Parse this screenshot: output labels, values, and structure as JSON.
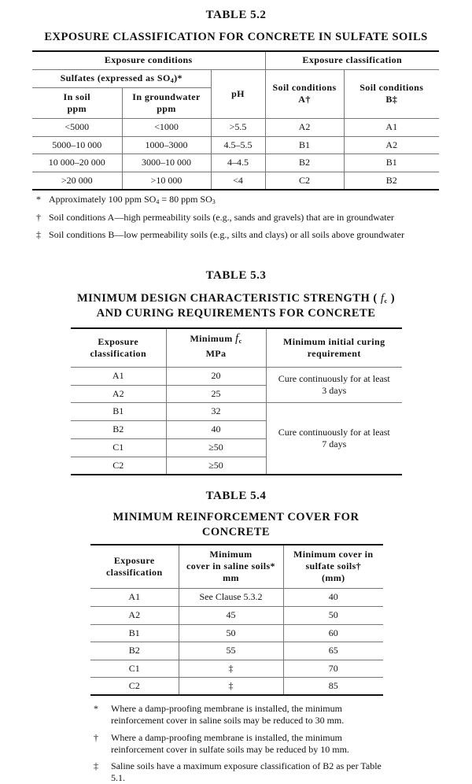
{
  "t52": {
    "label": "TABLE   5.2",
    "title": "EXPOSURE CLASSIFICATION FOR CONCRETE IN SULFATE SOILS",
    "h_exposure_conditions": "Exposure conditions",
    "h_exposure_classification": "Exposure classification",
    "h_sulfates": "Sulfates (expressed as SO",
    "h_sulfates_sub": "4",
    "h_sulfates_end": ")*",
    "h_in_soil": "In soil",
    "h_in_soil_unit": "ppm",
    "h_in_groundwater": "In groundwater",
    "h_in_groundwater_unit": "ppm",
    "h_ph": "pH",
    "h_soil_a": "Soil conditions",
    "h_soil_a2": "A†",
    "h_soil_b": "Soil conditions",
    "h_soil_b2": "B‡",
    "rows": [
      [
        "<5000",
        "<1000",
        ">5.5",
        "A2",
        "A1"
      ],
      [
        "5000–10 000",
        "1000–3000",
        "4.5–5.5",
        "B1",
        "A2"
      ],
      [
        "10 000–20 000",
        "3000–10 000",
        "4–4.5",
        "B2",
        "B1"
      ],
      [
        ">20 000",
        ">10 000",
        "<4",
        "C2",
        "B2"
      ]
    ],
    "notes": [
      {
        "mark": "*",
        "text": "Approximately 100 ppm SO",
        "s1": "4",
        "mid": " = 80 ppm SO",
        "s2": "3"
      },
      {
        "mark": "†",
        "text": "Soil conditions A—high permeability soils (e.g., sands and gravels) that are in groundwater"
      },
      {
        "mark": "‡",
        "text": "Soil conditions B—low permeability soils (e.g., silts and clays) or all soils above groundwater"
      }
    ]
  },
  "t53": {
    "label": "TABLE   5.3",
    "title1": "MINIMUM DESIGN CHARACTERISTIC STRENGTH (",
    "title_f": "f",
    "title_fsub": "c",
    "title1_end": ")",
    "title2": "AND CURING REQUIREMENTS FOR CONCRETE",
    "h1": "Exposure classification",
    "h2": "Minimum",
    "h2_f": "f",
    "h2_fsub": "c",
    "h2_unit": "MPa",
    "h3": "Minimum initial curing requirement",
    "rows": [
      [
        "A1",
        "20"
      ],
      [
        "A2",
        "25"
      ],
      [
        "B1",
        "32"
      ],
      [
        "B2",
        "40"
      ],
      [
        "C1",
        "≥50"
      ],
      [
        "C2",
        "≥50"
      ]
    ],
    "cure_3": "Cure continuously for at least 3 days",
    "cure_7": "Cure continuously for at least 7 days"
  },
  "t54": {
    "label": "TABLE   5.4",
    "title1": "MINIMUM REINFORCEMENT COVER FOR",
    "title2": "CONCRETE",
    "h1": "Exposure classification",
    "h2a": "Minimum",
    "h2b": "cover in saline soils*",
    "h2c": "mm",
    "h3a": "Minimum cover in",
    "h3b": "sulfate soils†",
    "h3c": "(mm)",
    "rows": [
      [
        "A1",
        "See Clause 5.3.2",
        "40"
      ],
      [
        "A2",
        "45",
        "50"
      ],
      [
        "B1",
        "50",
        "60"
      ],
      [
        "B2",
        "55",
        "65"
      ],
      [
        "C1",
        "‡",
        "70"
      ],
      [
        "C2",
        "‡",
        "85"
      ]
    ],
    "notes": [
      {
        "mark": "*",
        "text": "Where a damp-proofing membrane is installed, the minimum reinforcement cover in saline soils may be reduced to 30 mm."
      },
      {
        "mark": "†",
        "text": "Where a damp-proofing membrane is installed, the minimum reinforcement cover in sulfate soils may be reduced by 10 mm."
      },
      {
        "mark": "‡",
        "text": "Saline soils have a maximum exposure classification of B2 as per Table 5.1."
      }
    ]
  }
}
